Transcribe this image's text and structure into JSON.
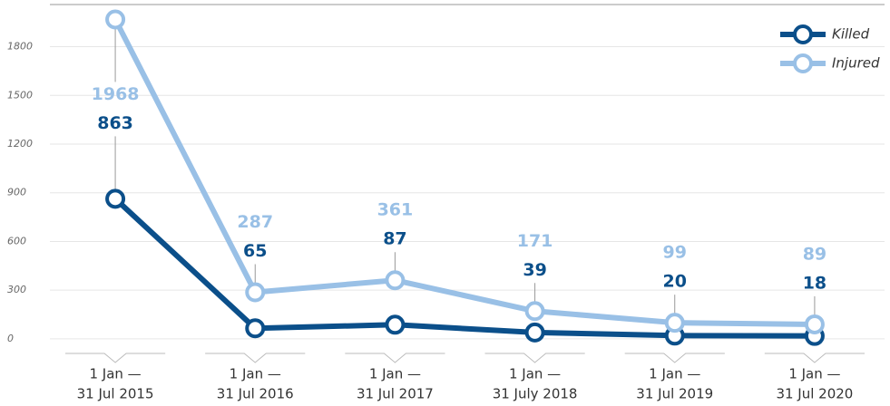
{
  "chart_data": {
    "type": "line",
    "categories": [
      [
        "1 Jan —",
        "31 Jul 2015"
      ],
      [
        "1 Jan —",
        "31 Jul 2016"
      ],
      [
        "1 Jan —",
        "31 Jul 2017"
      ],
      [
        "1 Jan —",
        "31 July 2018"
      ],
      [
        "1 Jan —",
        "31 Jul 2019"
      ],
      [
        "1 Jan —",
        "31 Jul 2020"
      ]
    ],
    "series": [
      {
        "name": "Killed",
        "color": "#0b4f8a",
        "values": [
          863,
          65,
          87,
          39,
          20,
          18
        ]
      },
      {
        "name": "Injured",
        "color": "#99c0e6",
        "values": [
          1968,
          287,
          361,
          171,
          99,
          89
        ]
      }
    ],
    "ylim": [
      -90,
      2060
    ],
    "yticks": [
      0,
      300,
      600,
      900,
      1200,
      1500,
      1800
    ],
    "grid": true,
    "legend": "top-right"
  }
}
